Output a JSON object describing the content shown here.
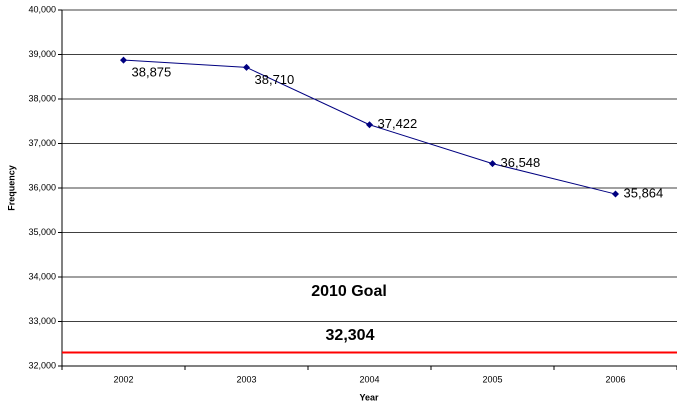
{
  "chart_data": {
    "type": "line",
    "x_label": "Year",
    "y_label": "Frequency",
    "categories": [
      "2002",
      "2003",
      "2004",
      "2005",
      "2006"
    ],
    "values": [
      38875,
      38710,
      37422,
      36548,
      35864
    ],
    "value_labels": [
      "38,875",
      "38,710",
      "37,422",
      "36,548",
      "35,864"
    ],
    "color": "#000080",
    "ylim": [
      32000,
      40000
    ],
    "yticks": [
      {
        "value": 32000,
        "label": "32,000"
      },
      {
        "value": 33000,
        "label": "33,000"
      },
      {
        "value": 34000,
        "label": "34,000"
      },
      {
        "value": 35000,
        "label": "35,000"
      },
      {
        "value": 36000,
        "label": "36,000"
      },
      {
        "value": 37000,
        "label": "37,000"
      },
      {
        "value": 38000,
        "label": "38,000"
      },
      {
        "value": 39000,
        "label": "39,000"
      },
      {
        "value": 40000,
        "label": "40,000"
      }
    ],
    "grid": true,
    "goal": {
      "label": "2010 Goal",
      "value": 32304,
      "value_label": "32,304",
      "color": "#ff0000"
    }
  }
}
